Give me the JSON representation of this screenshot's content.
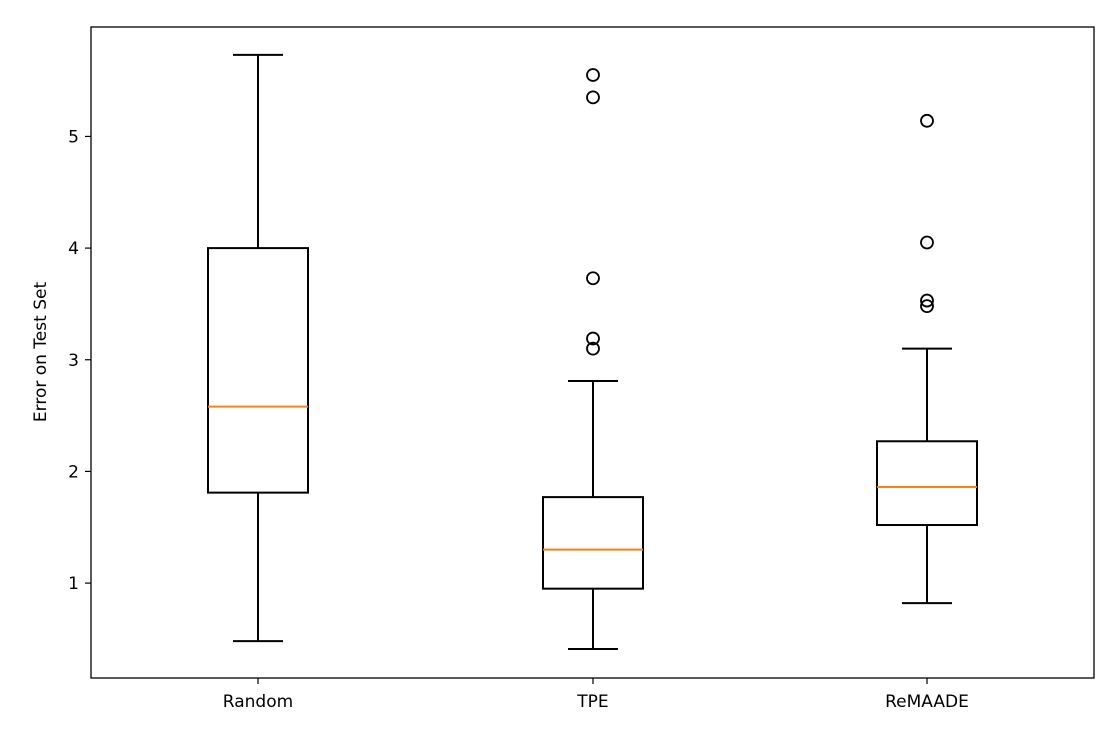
{
  "chart_data": {
    "type": "box",
    "title": "",
    "xlabel": "",
    "ylabel": "Error on Test Set",
    "ylim": [
      0.15,
      5.98
    ],
    "yticks": [
      1,
      2,
      3,
      4,
      5
    ],
    "grid": false,
    "categories": [
      "Random",
      "TPE",
      "ReMAADE"
    ],
    "boxes": [
      {
        "category": "Random",
        "whisker_low": 0.48,
        "q1": 1.81,
        "median": 2.58,
        "q3": 4.0,
        "whisker_high": 5.73,
        "outliers": []
      },
      {
        "category": "TPE",
        "whisker_low": 0.41,
        "q1": 0.95,
        "median": 1.3,
        "q3": 1.77,
        "whisker_high": 2.81,
        "outliers": [
          3.1,
          3.19,
          3.73,
          5.35,
          5.55
        ]
      },
      {
        "category": "ReMAADE",
        "whisker_low": 0.82,
        "q1": 1.52,
        "median": 1.86,
        "q3": 2.27,
        "whisker_high": 3.1,
        "outliers": [
          3.48,
          3.53,
          4.05,
          5.14
        ]
      }
    ],
    "colors": {
      "box": "#000000",
      "median": "#ff7f0e"
    }
  }
}
